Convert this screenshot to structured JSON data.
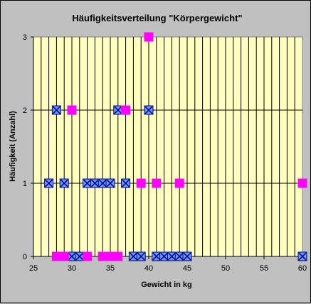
{
  "chart_data": {
    "type": "scatter",
    "title": "Häufigkeitsverteilung \"Körpergewicht\"",
    "xlabel": "Gewicht in kg",
    "ylabel": "Häufigkeit (Anzahl)",
    "xlim": [
      25,
      60
    ],
    "ylim": [
      0,
      3
    ],
    "xticks": [
      "25",
      "30",
      "35",
      "40",
      "45",
      "50",
      "55",
      "60"
    ],
    "yticks": [
      "0",
      "1",
      "2",
      "3"
    ],
    "x_grid_step": 1,
    "grid": true,
    "colors": {
      "plot_background": "#ffffc0",
      "chart_background": "#c0c0c0",
      "series_1": "#6699ff",
      "series_2": "#ff00ff"
    },
    "series": [
      {
        "marker": "square-x",
        "points": [
          [
            27,
            1
          ],
          [
            28,
            2
          ],
          [
            29,
            1
          ],
          [
            30,
            0
          ],
          [
            31,
            0
          ],
          [
            32,
            1
          ],
          [
            33,
            1
          ],
          [
            34,
            1
          ],
          [
            35,
            1
          ],
          [
            36,
            2
          ],
          [
            37,
            1
          ],
          [
            38,
            0
          ],
          [
            39,
            0
          ],
          [
            40,
            2
          ],
          [
            41,
            0
          ],
          [
            42,
            0
          ],
          [
            43,
            0
          ],
          [
            44,
            0
          ],
          [
            45,
            0
          ],
          [
            60,
            0
          ]
        ]
      },
      {
        "marker": "square",
        "points": [
          [
            28,
            0
          ],
          [
            29,
            0
          ],
          [
            30,
            2
          ],
          [
            32,
            0
          ],
          [
            34,
            0
          ],
          [
            35,
            0
          ],
          [
            36,
            0
          ],
          [
            37,
            2
          ],
          [
            39,
            1
          ],
          [
            40,
            3
          ],
          [
            41,
            1
          ],
          [
            44,
            1
          ],
          [
            60,
            1
          ]
        ]
      }
    ]
  }
}
